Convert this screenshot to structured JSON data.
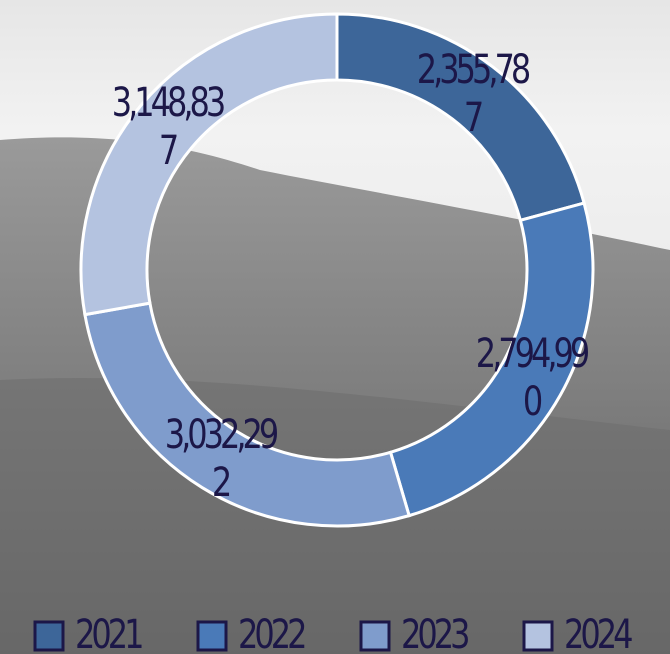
{
  "chart_data": {
    "type": "donut",
    "categories": [
      "2021",
      "2022",
      "2023",
      "2024"
    ],
    "values": [
      2355787,
      2794990,
      3032292,
      3148837
    ],
    "value_labels": [
      "2,355,787",
      "2,794,990",
      "3,032,292",
      "3,148,837"
    ],
    "colors": [
      "#3d6699",
      "#4a7ab8",
      "#7f9ccc",
      "#b4c3e0"
    ],
    "legend": "bottom"
  }
}
